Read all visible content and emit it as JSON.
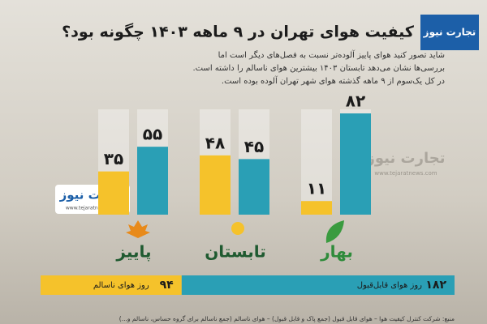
{
  "header": {
    "title": "کیفیت هوای تهران در ۹ ماهه ۱۴۰۳ چگونه بود؟",
    "lines": [
      "شاید تصور کنید هوای پاییز آلوده‌تر نسبت به فصل‌های دیگر است اما",
      "بررسی‌ها نشان می‌دهد تابستان ۱۴۰۳ بیشترین هوای ناسالم را داشته است.",
      "در کل یک‌سوم از ۹ ماهه گذشته هوای شهر تهران آلوده بوده است."
    ]
  },
  "logo": {
    "name": "تجارت نیوز",
    "url": "www.tejaratnews.com"
  },
  "chart_data": {
    "type": "bar",
    "categories": [
      "بهار",
      "تابستان",
      "پاییز"
    ],
    "category_colors": [
      "#2e8b3a",
      "#1f5a30",
      "#1f5a30"
    ],
    "series": [
      {
        "color": "#f5c22b",
        "values": [
          11,
          48,
          35
        ],
        "value_labels": [
          "۱۱",
          "۴۸",
          "۳۵"
        ]
      },
      {
        "color": "#2a9fb5",
        "values": [
          82,
          45,
          55
        ],
        "value_labels": [
          "۸۲",
          "۴۵",
          "۵۵"
        ]
      }
    ]
  },
  "summary": [
    {
      "value": 182,
      "label": "۱۸۲",
      "text": "روز هوای قابل‌قبول",
      "color": "#2a9fb5"
    },
    {
      "value": 94,
      "label": "۹۴",
      "text": "روز هوای ناسالم",
      "color": "#f5c22b"
    }
  ],
  "source": "منبع: شرکت کنترل کیفیت هوا – هوای قابل قبول (جمع پاک و قابل قبول) – هوای ناسالم (جمع ناسالم برای گروه حساس، ناسالم و...)"
}
